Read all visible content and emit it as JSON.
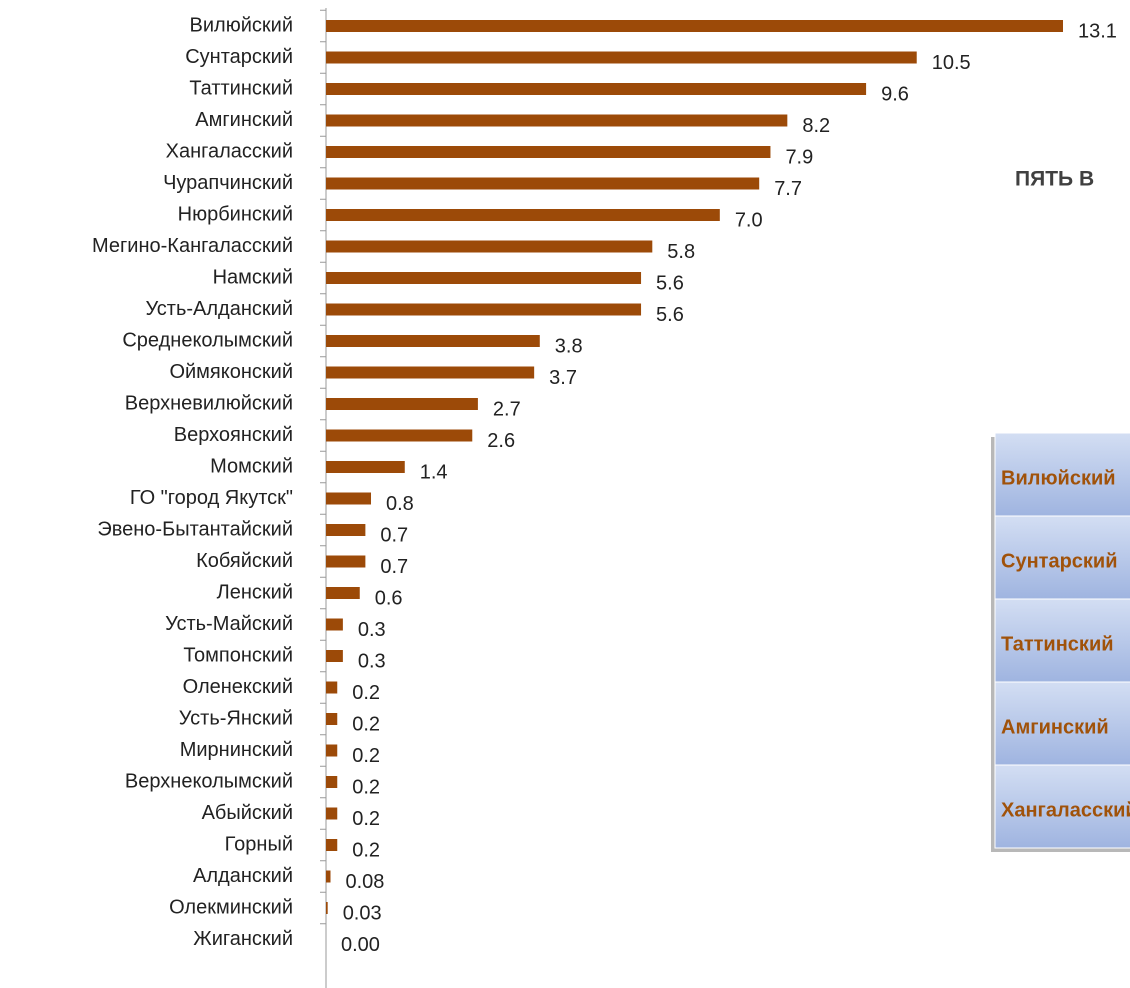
{
  "chart_data": {
    "type": "hbar",
    "categories": [
      "Вилюйский",
      "Сунтарский",
      "Таттинский",
      "Амгинский",
      "Хангаласский",
      "Чурапчинский",
      "Нюрбинский",
      "Мегино-Кангаласский",
      "Намский",
      "Усть-Алданский",
      "Среднеколымский",
      "Оймяконский",
      "Верхневилюйский",
      "Верхоянский",
      "Момский",
      "ГО \"город Якутск\"",
      "Эвено-Бытантайский",
      "Кобяйский",
      "Ленский",
      "Усть-Майский",
      "Томпонский",
      "Оленекский",
      "Усть-Янский",
      "Мирнинский",
      "Верхнеколымский",
      "Абыйский",
      "Горный",
      "Алданский",
      "Олекминский",
      "Жиганский"
    ],
    "values": [
      13.1,
      10.5,
      9.6,
      8.2,
      7.9,
      7.7,
      7.0,
      5.8,
      5.6,
      5.6,
      3.8,
      3.7,
      2.7,
      2.6,
      1.4,
      0.8,
      0.7,
      0.7,
      0.6,
      0.3,
      0.3,
      0.2,
      0.2,
      0.2,
      0.2,
      0.2,
      0.2,
      0.08,
      0.03,
      0
    ],
    "value_labels": [
      "13.1",
      "10.5",
      "9.6",
      "8.2",
      "7.9",
      "7.7",
      "7.0",
      "5.8",
      "5.6",
      "5.6",
      "3.8",
      "3.7",
      "2.7",
      "2.6",
      "1.4",
      "0.8",
      "0.7",
      "0.7",
      "0.6",
      "0.3",
      "0.3",
      "0.2",
      "0.2",
      "0.2",
      "0.2",
      "0.2",
      "0.2",
      "0.08",
      "0.03",
      "0.00"
    ],
    "color": "#9c4a08"
  },
  "panel": {
    "title": "ПЯТЬ В",
    "rows": [
      "Вилюйский",
      "Сунтарский",
      "Таттинский",
      "Амгинский",
      "Хангаласский"
    ]
  }
}
